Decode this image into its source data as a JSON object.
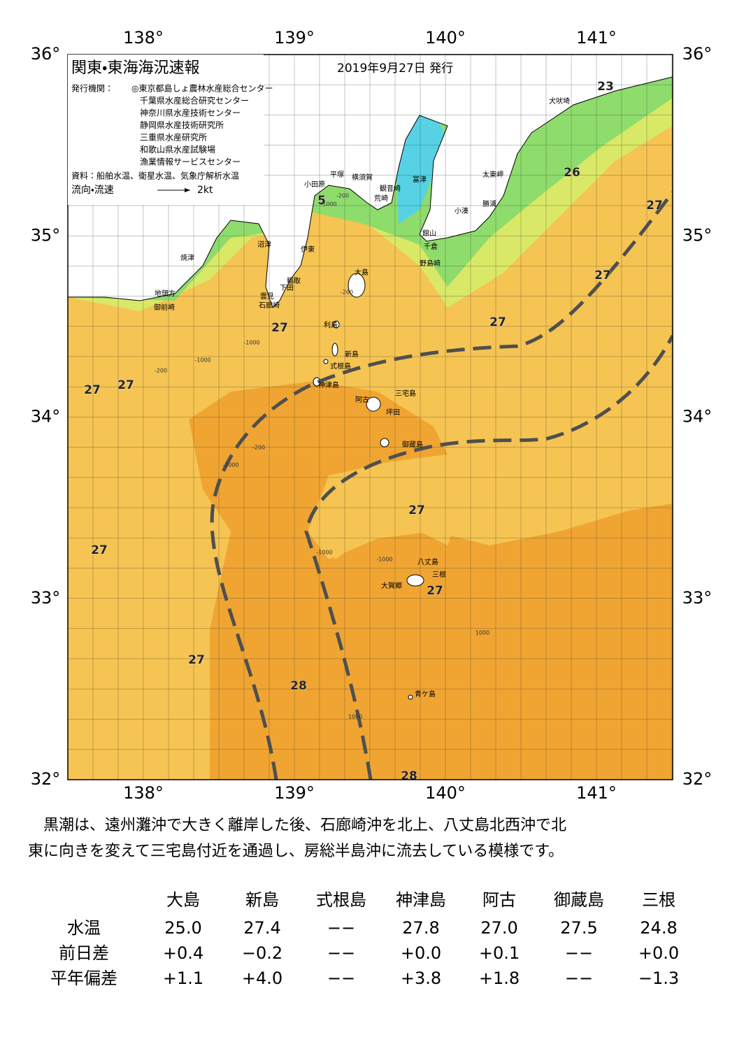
{
  "header": {
    "title": "関東・東海海況速報",
    "date": "2019年9月27日 発行",
    "issuer_label": "発行機関：",
    "issuers": [
      "◎東京都島しょ農林水産総合センター",
      "千葉県水産総合研究センター",
      "神奈川県水産技術センター",
      "静岡県水産技術研究所",
      "三重県水産研究所",
      "和歌山県水産試験場",
      "漁業情報サービスセンター"
    ],
    "source": "資料：船舶水温、衛星水温、気象庁解析水温",
    "legend_label": "流向・流速",
    "legend_scale": "2kt"
  },
  "map": {
    "lon_labels": [
      "138°",
      "139°",
      "140°",
      "141°"
    ],
    "lat_labels": [
      "36°",
      "35°",
      "34°",
      "33°",
      "32°"
    ],
    "places": [
      "大島",
      "利島",
      "新島",
      "式根島",
      "神津島",
      "三宅島",
      "阿古",
      "坪田",
      "御蔵島",
      "八丈島",
      "三根",
      "大賀郷",
      "青ケ島",
      "犬吠埼",
      "太東岬",
      "勝浦",
      "小湊",
      "館山",
      "千倉",
      "野島崎",
      "富津",
      "観音崎",
      "荒崎",
      "横須賀",
      "平塚",
      "小田原",
      "沼津",
      "伊東",
      "稲取",
      "下田",
      "雲見",
      "石廊崎",
      "焼津",
      "地頭方",
      "御前崎"
    ],
    "temperature_labels": [
      "23",
      "26",
      "27",
      "27",
      "27",
      "5",
      "27",
      "27",
      "27",
      "27",
      "27",
      "27",
      "27",
      "28",
      "28"
    ],
    "depth_labels": [
      "-200",
      "-1000",
      "-200",
      "-1000",
      "-200",
      "-1000",
      "-1000",
      "-200",
      "-1000",
      "-1000",
      "1000",
      "1000"
    ]
  },
  "commentary": [
    "黒潮は、遠州灘沖で大きく離岸した後、石廊崎沖を北上、八丈島北西沖で北",
    "東に向きを変えて三宅島付近を通過し、房総半島沖に流去している模様です。"
  ],
  "table": {
    "columns": [
      "大島",
      "新島",
      "式根島",
      "神津島",
      "阿古",
      "御蔵島",
      "三根"
    ],
    "rows": [
      [
        "水温",
        "25.0",
        "27.4",
        "−−",
        "27.8",
        "27.0",
        "27.5",
        "24.8"
      ],
      [
        "前日差",
        "+0.4",
        "−0.2",
        "−−",
        "+0.0",
        "+0.1",
        "−−",
        "+0.0"
      ],
      [
        "平年偏差",
        "+1.1",
        "+4.0",
        "−−",
        "+3.8",
        "+1.8",
        "−−",
        "−1.3"
      ]
    ]
  }
}
